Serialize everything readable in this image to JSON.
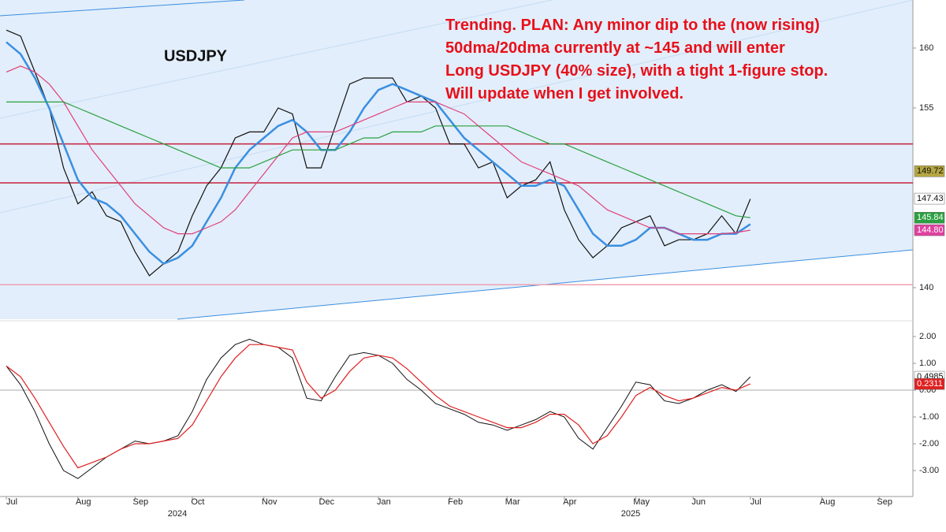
{
  "chart_data": [
    {
      "type": "line",
      "title": "USDJPY",
      "annotation": [
        "Trending. PLAN: Any minor dip to the (now rising)",
        "50dma/20dma currently at ~145 and will enter",
        "Long USDJPY (40% size), with a tight 1-figure stop.",
        "Will update when I get involved."
      ],
      "ylim": [
        137.37,
        164.01
      ],
      "yticks": [
        140,
        155,
        160
      ],
      "series": [
        {
          "color": "#111111",
          "width": 1.2,
          "values": [
            161.5,
            161,
            158,
            155,
            150,
            147,
            148,
            146,
            145.5,
            143,
            141,
            142,
            143,
            146,
            148.5,
            150,
            152.5,
            153,
            153,
            155,
            154.5,
            150,
            150,
            153.5,
            157,
            157.5,
            157.5,
            157.5,
            155.5,
            156,
            155,
            152,
            152,
            150,
            150.5,
            147.5,
            148.5,
            149,
            150.5,
            146.5,
            144,
            142.5,
            143.5,
            145,
            145.5,
            146,
            143.5,
            144,
            144,
            144.5,
            146,
            144.5,
            147.4,
            null,
            null,
            null,
            null,
            null,
            null,
            null,
            null,
            null,
            null
          ]
        },
        {
          "color": "#3a8fe0",
          "width": 2.5,
          "values": [
            160.5,
            159.5,
            157.5,
            155,
            152,
            149,
            147.5,
            147,
            146,
            144.5,
            143,
            142,
            142.5,
            143.5,
            145.5,
            147.5,
            150,
            151.5,
            152.5,
            153.5,
            154,
            153,
            151.5,
            151.5,
            153,
            155,
            156.5,
            157,
            156.5,
            156,
            155.5,
            154,
            152.5,
            151.5,
            150.5,
            149.5,
            148.5,
            148.5,
            149,
            148.5,
            146.5,
            144.5,
            143.5,
            143.5,
            144,
            145,
            145,
            144.5,
            144,
            144,
            144.5,
            144.5,
            145.3,
            null,
            null,
            null,
            null,
            null,
            null,
            null,
            null,
            null,
            null
          ]
        },
        {
          "color": "#e0407a",
          "width": 1.2,
          "values": [
            158,
            158.5,
            158,
            157,
            155.5,
            153.5,
            151.5,
            150,
            148.5,
            147,
            146,
            145,
            144.5,
            144.5,
            145,
            145.5,
            146.5,
            148,
            149.5,
            151,
            152.5,
            153,
            153,
            153,
            153.5,
            154,
            154.5,
            155,
            155.5,
            155.5,
            155.5,
            155,
            154.5,
            153.5,
            152.5,
            151.5,
            150.5,
            150,
            149.5,
            149,
            148.5,
            147.5,
            146.5,
            146,
            145.5,
            145,
            145,
            144.5,
            144.5,
            144.5,
            144.5,
            144.6,
            144.8,
            null,
            null,
            null,
            null,
            null,
            null,
            null,
            null,
            null,
            null
          ]
        },
        {
          "color": "#2aa040",
          "width": 1.2,
          "values": [
            155.5,
            155.5,
            155.5,
            155.5,
            155.5,
            155,
            154.5,
            154,
            153.5,
            153,
            152.5,
            152,
            151.5,
            151,
            150.5,
            150,
            150,
            150,
            150.5,
            151,
            151.5,
            151.5,
            151.5,
            151.5,
            152,
            152.5,
            152.5,
            153,
            153,
            153,
            153.5,
            153.5,
            153.5,
            153.5,
            153.5,
            153.5,
            153,
            152.5,
            152,
            152,
            151.5,
            151,
            150.5,
            150,
            149.5,
            149,
            148.5,
            148,
            147.5,
            147,
            146.5,
            146,
            145.84,
            null,
            null,
            null,
            null,
            null,
            null,
            null,
            null,
            null,
            null
          ]
        }
      ],
      "hlines": [
        {
          "value": 152,
          "color": "#c8203a"
        },
        {
          "value": 148.75,
          "color": "#c8203a"
        },
        {
          "value": 140.25,
          "color": "#f0a0b0"
        }
      ],
      "tags": [
        {
          "value": 149.72,
          "color": "#b5a642",
          "text_color": "#111111"
        },
        {
          "value": 147.43,
          "color": "#ffffff",
          "text_color": "#111111"
        },
        {
          "value": 145.84,
          "color": "#2aa040",
          "text_color": "#ffffff"
        },
        {
          "value": 144.8,
          "label": "144.80",
          "color": "#e040a0",
          "text_color": "#ffffff"
        }
      ]
    },
    {
      "type": "line",
      "categories": [
        "Jul",
        null,
        null,
        null,
        null,
        "Aug",
        null,
        null,
        null,
        "Sep",
        null,
        null,
        null,
        "Oct",
        null,
        null,
        null,
        null,
        "Nov",
        null,
        null,
        null,
        "Dec",
        null,
        null,
        null,
        "Jan",
        null,
        null,
        null,
        null,
        "Feb",
        null,
        null,
        null,
        "Mar",
        null,
        null,
        null,
        "Apr",
        null,
        null,
        null,
        null,
        "May",
        null,
        null,
        null,
        "Jun",
        null,
        null,
        null,
        "Jul",
        null,
        null,
        null,
        null,
        "Aug",
        null,
        null,
        null,
        "Sep",
        null
      ],
      "year_labels": [
        "2024",
        "2025"
      ],
      "ylim": [
        -3.97,
        2.5
      ],
      "yticks": [
        {
          "value": 2,
          "label": "2.00"
        },
        {
          "value": 1,
          "label": "1.00"
        },
        {
          "value": 0,
          "label": "0.00"
        },
        {
          "value": -1,
          "label": "-1.00"
        },
        {
          "value": -2,
          "label": "-2.00"
        },
        {
          "value": -3,
          "label": "-3.00"
        }
      ],
      "series": [
        {
          "color": "#111111",
          "width": 1,
          "values": [
            0.9,
            0.2,
            -0.8,
            -2.0,
            -3.0,
            -3.3,
            -2.9,
            -2.5,
            -2.2,
            -1.9,
            -2.0,
            -1.9,
            -1.7,
            -0.8,
            0.4,
            1.2,
            1.7,
            1.9,
            1.7,
            1.6,
            1.2,
            -0.3,
            -0.4,
            0.5,
            1.3,
            1.4,
            1.3,
            1.0,
            0.4,
            0.0,
            -0.5,
            -0.7,
            -0.9,
            -1.2,
            -1.3,
            -1.5,
            -1.3,
            -1.1,
            -0.8,
            -1.0,
            -1.8,
            -2.2,
            -1.4,
            -0.6,
            0.3,
            0.2,
            -0.4,
            -0.5,
            -0.3,
            0.0,
            0.2,
            -0.05,
            0.4985,
            null,
            null,
            null,
            null,
            null,
            null,
            null,
            null,
            null,
            null
          ]
        },
        {
          "color": "#e02020",
          "width": 1.2,
          "values": [
            0.9,
            0.5,
            -0.3,
            -1.2,
            -2.1,
            -2.9,
            -2.7,
            -2.5,
            -2.2,
            -2.0,
            -2.0,
            -1.9,
            -1.8,
            -1.3,
            -0.4,
            0.5,
            1.2,
            1.7,
            1.7,
            1.6,
            1.5,
            0.3,
            -0.3,
            0.0,
            0.7,
            1.2,
            1.3,
            1.2,
            0.8,
            0.3,
            -0.2,
            -0.6,
            -0.8,
            -1.0,
            -1.2,
            -1.4,
            -1.4,
            -1.2,
            -0.9,
            -0.9,
            -1.3,
            -2.0,
            -1.7,
            -1.0,
            -0.2,
            0.1,
            -0.2,
            -0.4,
            -0.3,
            -0.1,
            0.1,
            0.0,
            0.2311,
            null,
            null,
            null,
            null,
            null,
            null,
            null,
            null,
            null,
            null
          ]
        }
      ],
      "tags": [
        {
          "value": 0.4985,
          "color": "#ffffff",
          "text_color": "#111111"
        },
        {
          "value": 0.2311,
          "color": "#e02020",
          "text_color": "#ffffff"
        }
      ]
    }
  ]
}
